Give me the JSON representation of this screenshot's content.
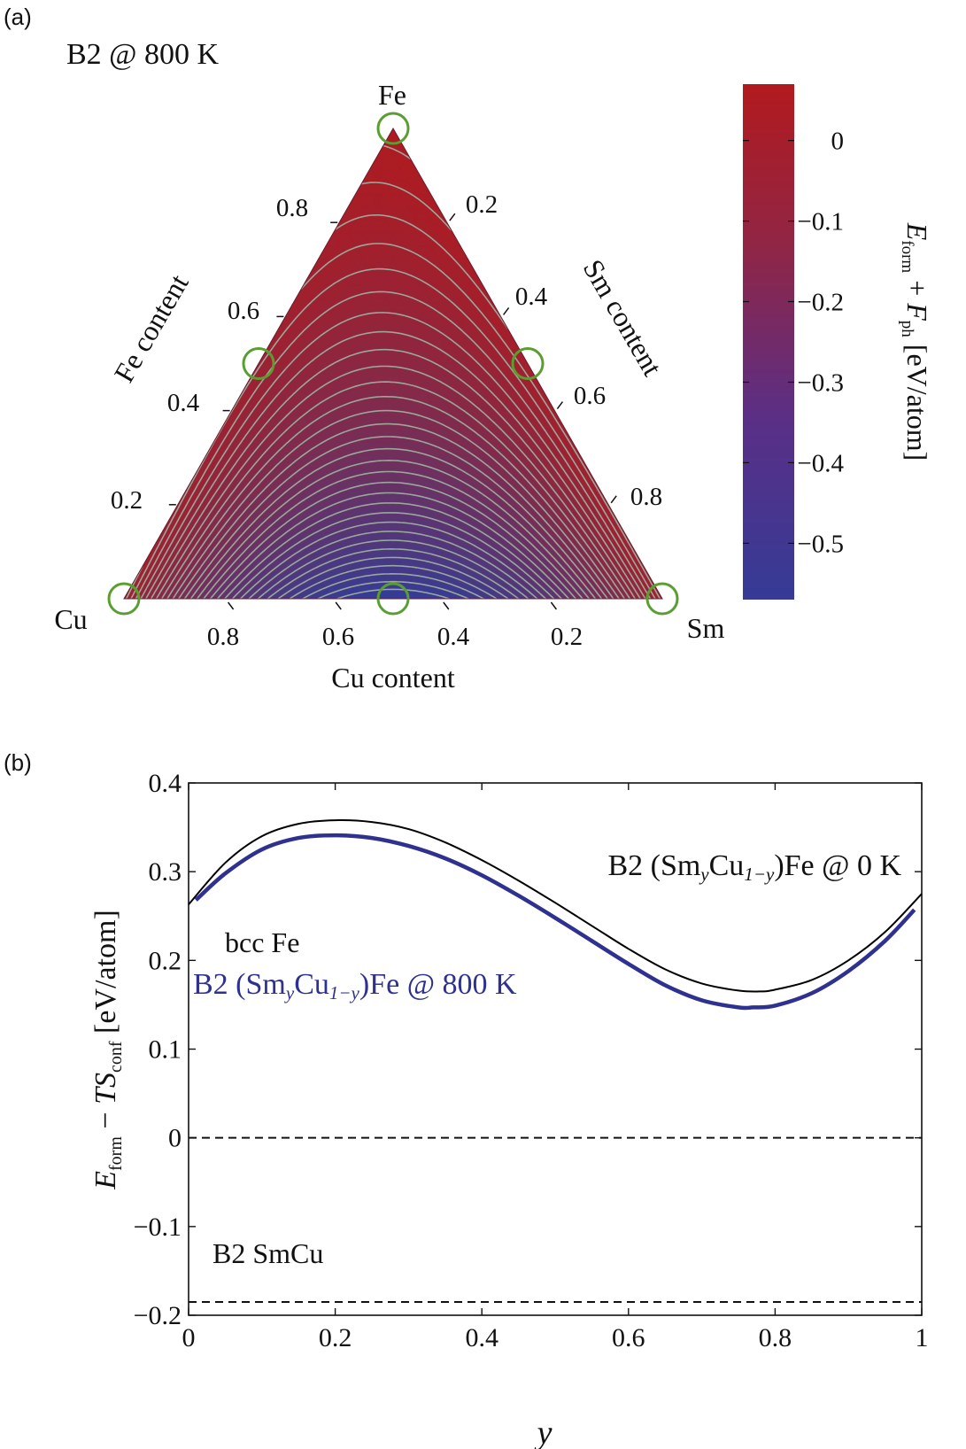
{
  "panel_a": {
    "label": "(a)",
    "title": "B2 @ 800 K",
    "corners": {
      "top": "Fe",
      "left": "Cu",
      "right": "Sm"
    },
    "axis_labels": {
      "fe": "Fe content",
      "sm": "Sm content",
      "cu": "Cu content"
    },
    "colorbar": {
      "label_parts": [
        "E",
        "form",
        " + ",
        "F",
        "ph",
        " [eV/atom]"
      ],
      "ticks": [
        "0",
        "−0.1",
        "−0.2",
        "−0.3",
        "−0.4",
        "−0.5"
      ],
      "colors": {
        "high": "#b11a1e",
        "low": "#353b96"
      }
    },
    "marker_color": "#5a9e32",
    "contour_color": "#9aa79b"
  },
  "panel_b": {
    "label": "(b)",
    "ylabel_parts": [
      "E",
      "form",
      " − ",
      "TS",
      "conf",
      " [eV/atom]"
    ],
    "xlabel": "y",
    "label_0K": [
      "B2 (Sm",
      "y",
      "Cu",
      "1−y",
      ")Fe @ 0 K"
    ],
    "label_800K": [
      "B2 (Sm",
      "y",
      "Cu",
      "1−y",
      ")Fe @ 800 K"
    ],
    "label_bcc": "bcc Fe",
    "label_smcu": "B2 SmCu"
  },
  "chart_data": [
    {
      "type": "heatmap",
      "subtype": "ternary-contour",
      "title": "B2 @ 800 K",
      "components": [
        "Fe",
        "Cu",
        "Sm"
      ],
      "axis_ticks": {
        "Fe content": [
          "0.2",
          "0.4",
          "0.6",
          "0.8"
        ],
        "Sm content": [
          "0.2",
          "0.4",
          "0.6",
          "0.8"
        ],
        "Cu content": [
          "0.8",
          "0.6",
          "0.4",
          "0.2"
        ]
      },
      "colorbar_range": [
        -0.57,
        0.07
      ],
      "colorbar_ticks": [
        0,
        -0.1,
        -0.2,
        -0.3,
        -0.4,
        -0.5
      ],
      "marked_compositions": [
        {
          "Fe": 1.0,
          "Cu": 0.0,
          "Sm": 0.0
        },
        {
          "Fe": 0.5,
          "Cu": 0.5,
          "Sm": 0.0
        },
        {
          "Fe": 0.5,
          "Cu": 0.0,
          "Sm": 0.5
        },
        {
          "Fe": 0.0,
          "Cu": 1.0,
          "Sm": 0.0
        },
        {
          "Fe": 0.0,
          "Cu": 0.5,
          "Sm": 0.5
        },
        {
          "Fe": 0.0,
          "Cu": 0.0,
          "Sm": 1.0
        }
      ]
    },
    {
      "type": "line",
      "xlabel": "y",
      "ylabel": "E_form − TS_conf [eV/atom]",
      "xlim": [
        0,
        1
      ],
      "ylim": [
        -0.2,
        0.4
      ],
      "xticks": [
        0,
        0.2,
        0.4,
        0.6,
        0.8,
        1
      ],
      "yticks": [
        -0.2,
        -0.1,
        0,
        0.1,
        0.2,
        0.3,
        0.4
      ],
      "series": [
        {
          "name": "B2 (SmyCu1−y)Fe @ 0 K",
          "color": "#000000",
          "x": [
            0,
            0.05,
            0.1,
            0.15,
            0.2,
            0.25,
            0.3,
            0.35,
            0.4,
            0.45,
            0.5,
            0.55,
            0.6,
            0.65,
            0.7,
            0.75,
            0.78,
            0.8,
            0.85,
            0.9,
            0.95,
            1.0
          ],
          "y": [
            0.263,
            0.31,
            0.34,
            0.354,
            0.358,
            0.356,
            0.348,
            0.333,
            0.313,
            0.29,
            0.265,
            0.239,
            0.213,
            0.19,
            0.174,
            0.166,
            0.165,
            0.167,
            0.178,
            0.2,
            0.232,
            0.275
          ]
        },
        {
          "name": "B2 (SmyCu1−y)Fe @ 800 K",
          "color": "#2e318f",
          "x": [
            0.01,
            0.05,
            0.1,
            0.15,
            0.2,
            0.25,
            0.3,
            0.35,
            0.4,
            0.45,
            0.5,
            0.55,
            0.6,
            0.65,
            0.7,
            0.75,
            0.77,
            0.8,
            0.85,
            0.9,
            0.95,
            0.99
          ],
          "y": [
            0.268,
            0.298,
            0.325,
            0.338,
            0.341,
            0.338,
            0.329,
            0.315,
            0.296,
            0.273,
            0.248,
            0.222,
            0.196,
            0.172,
            0.155,
            0.147,
            0.147,
            0.149,
            0.163,
            0.188,
            0.222,
            0.257
          ]
        },
        {
          "name": "bcc Fe",
          "style": "dashed",
          "x": [
            0,
            1
          ],
          "y": [
            0,
            0
          ]
        },
        {
          "name": "B2 SmCu",
          "style": "dashed",
          "x": [
            0,
            1
          ],
          "y": [
            -0.185,
            -0.185
          ]
        }
      ]
    }
  ]
}
